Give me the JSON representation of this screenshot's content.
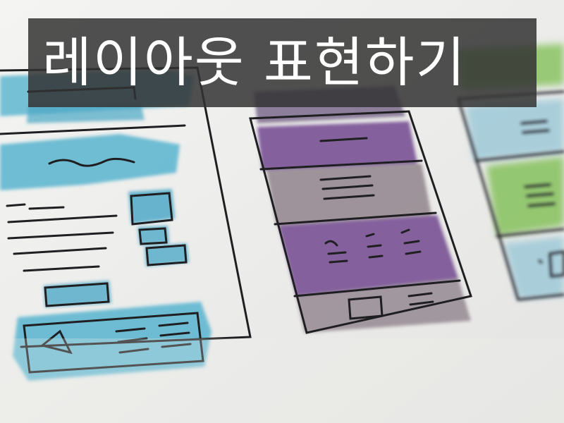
{
  "banner": {
    "title": "레이아웃 표현하기",
    "text_color": "#ffffff",
    "background_color": "#323232"
  },
  "photo": {
    "subject": "watercolor-wireframe-sketches",
    "colors": {
      "paper": "#eeeeec",
      "left_wash": "#5fb7d0",
      "center_wash": "#7e5a99",
      "center_gray_wash": "#9a8e96",
      "right_wash": "#8fc56a",
      "ink": "#1f1f22"
    }
  }
}
